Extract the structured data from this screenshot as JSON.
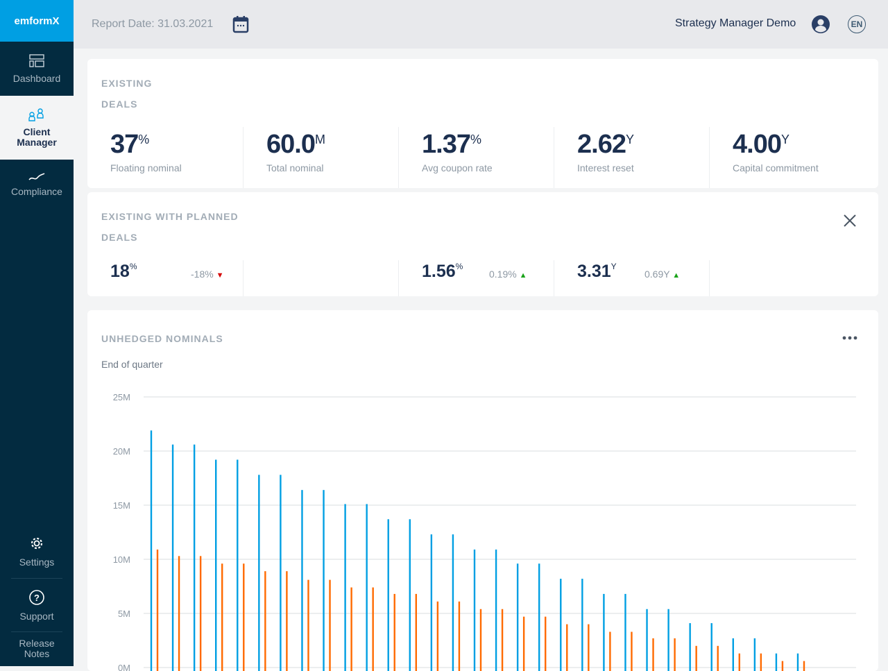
{
  "app": {
    "logo": "emformX"
  },
  "sidebar": {
    "items": [
      {
        "label": "Dashboard",
        "icon": "dashboard-icon"
      },
      {
        "label": "Client Manager",
        "icon": "users-icon",
        "active": true
      },
      {
        "label": "Compliance",
        "icon": "wave-icon"
      }
    ],
    "bottom": [
      {
        "label": "Settings",
        "icon": "gear-icon"
      },
      {
        "label": "Support",
        "icon": "question-icon"
      },
      {
        "label": "Release Notes"
      }
    ]
  },
  "header": {
    "report_date": "Report Date: 31.03.2021",
    "user": "Strategy Manager Demo",
    "language": "EN"
  },
  "existing": {
    "title1": "EXISTING",
    "title2": "DEALS",
    "kpis": [
      {
        "value": "37",
        "unit": "%",
        "label": "Floating nominal"
      },
      {
        "value": "60.0",
        "unit": "M",
        "label": "Total nominal"
      },
      {
        "value": "1.37",
        "unit": "%",
        "label": "Avg coupon rate"
      },
      {
        "value": "2.62",
        "unit": "Y",
        "label": "Interest reset"
      },
      {
        "value": "4.00",
        "unit": "Y",
        "label": "Capital commitment"
      }
    ]
  },
  "planned": {
    "title1": "EXISTING WITH PLANNED",
    "title2": "DEALS",
    "kpis": [
      {
        "value": "18",
        "unit": "%",
        "delta": "-18%",
        "direction": "down"
      },
      {
        "value": "1.56",
        "unit": "%",
        "delta": "0.19%",
        "direction": "up"
      },
      {
        "value": "3.31",
        "unit": "Y",
        "delta": "0.69Y",
        "direction": "up"
      }
    ]
  },
  "colors": {
    "up": "#1aa31a",
    "down": "#d40000",
    "series1": "#009fe3",
    "series2": "#ff6a00"
  },
  "chart_data": {
    "type": "bar",
    "title": "UNHEDGED NOMINALS",
    "subtitle": "End of quarter",
    "yticks": [
      "0M",
      "5M",
      "10M",
      "15M",
      "20M",
      "25M"
    ],
    "ylim": [
      0,
      25
    ],
    "unit": "M",
    "grid": true,
    "series": [
      {
        "values": [
          21.9,
          20.6,
          20.6,
          19.2,
          19.2,
          17.8,
          17.8,
          16.4,
          16.4,
          15.1,
          15.1,
          13.7,
          13.7,
          12.3,
          12.3,
          10.9,
          10.9,
          9.6,
          9.6,
          8.2,
          8.2,
          6.8,
          6.8,
          5.4,
          5.4,
          4.1,
          4.1,
          2.7,
          2.7,
          1.3,
          1.3
        ]
      },
      {
        "values": [
          10.9,
          10.3,
          10.3,
          9.6,
          9.6,
          8.9,
          8.9,
          8.1,
          8.1,
          7.4,
          7.4,
          6.8,
          6.8,
          6.1,
          6.1,
          5.4,
          5.4,
          4.7,
          4.7,
          4.0,
          4.0,
          3.3,
          3.3,
          2.7,
          2.7,
          2.0,
          2.0,
          1.3,
          1.3,
          0.6,
          0.6
        ]
      }
    ]
  }
}
